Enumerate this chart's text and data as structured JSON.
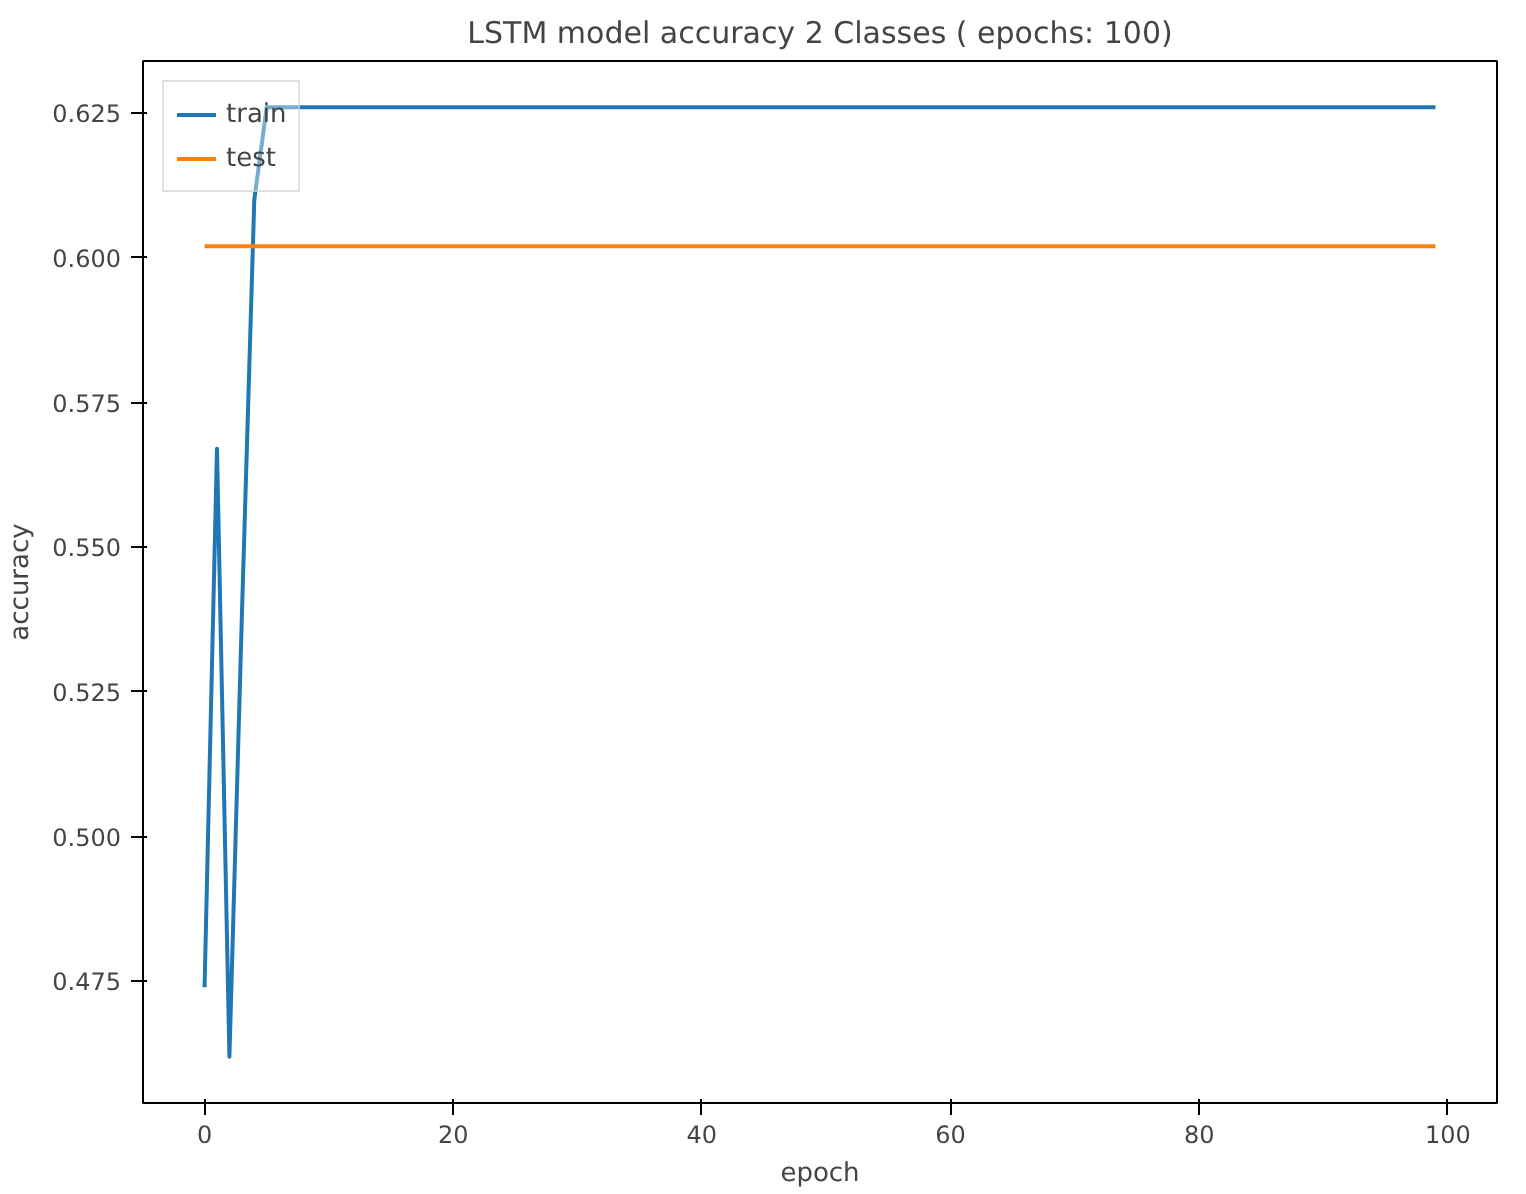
{
  "chart_data": {
    "type": "line",
    "title": "LSTM model accuracy 2 Classes ( epochs: 100)",
    "xlabel": "epoch",
    "ylabel": "accuracy",
    "x": [
      0,
      1,
      2,
      3,
      4,
      5,
      6,
      7,
      8,
      9,
      10,
      11,
      12,
      13,
      14,
      15,
      16,
      17,
      18,
      19,
      20,
      21,
      22,
      23,
      24,
      25,
      26,
      27,
      28,
      29,
      30,
      31,
      32,
      33,
      34,
      35,
      36,
      37,
      38,
      39,
      40,
      41,
      42,
      43,
      44,
      45,
      46,
      47,
      48,
      49,
      50,
      51,
      52,
      53,
      54,
      55,
      56,
      57,
      58,
      59,
      60,
      61,
      62,
      63,
      64,
      65,
      66,
      67,
      68,
      69,
      70,
      71,
      72,
      73,
      74,
      75,
      76,
      77,
      78,
      79,
      80,
      81,
      82,
      83,
      84,
      85,
      86,
      87,
      88,
      89,
      90,
      91,
      92,
      93,
      94,
      95,
      96,
      97,
      98,
      99
    ],
    "series": [
      {
        "name": "train",
        "color": "#1f77b4",
        "values": [
          0.474,
          0.567,
          0.462,
          0.538,
          0.61,
          0.626,
          0.626,
          0.626,
          0.626,
          0.626,
          0.626,
          0.626,
          0.626,
          0.626,
          0.626,
          0.626,
          0.626,
          0.626,
          0.626,
          0.626,
          0.626,
          0.626,
          0.626,
          0.626,
          0.626,
          0.626,
          0.626,
          0.626,
          0.626,
          0.626,
          0.626,
          0.626,
          0.626,
          0.626,
          0.626,
          0.626,
          0.626,
          0.626,
          0.626,
          0.626,
          0.626,
          0.626,
          0.626,
          0.626,
          0.626,
          0.626,
          0.626,
          0.626,
          0.626,
          0.626,
          0.626,
          0.626,
          0.626,
          0.626,
          0.626,
          0.626,
          0.626,
          0.626,
          0.626,
          0.626,
          0.626,
          0.626,
          0.626,
          0.626,
          0.626,
          0.626,
          0.626,
          0.626,
          0.626,
          0.626,
          0.626,
          0.626,
          0.626,
          0.626,
          0.626,
          0.626,
          0.626,
          0.626,
          0.626,
          0.626,
          0.626,
          0.626,
          0.626,
          0.626,
          0.626,
          0.626,
          0.626,
          0.626,
          0.626,
          0.626,
          0.626,
          0.626,
          0.626,
          0.626,
          0.626,
          0.626,
          0.626,
          0.626,
          0.626,
          0.626
        ]
      },
      {
        "name": "test",
        "color": "#ff7f0e",
        "values": [
          0.602,
          0.602,
          0.602,
          0.602,
          0.602,
          0.602,
          0.602,
          0.602,
          0.602,
          0.602,
          0.602,
          0.602,
          0.602,
          0.602,
          0.602,
          0.602,
          0.602,
          0.602,
          0.602,
          0.602,
          0.602,
          0.602,
          0.602,
          0.602,
          0.602,
          0.602,
          0.602,
          0.602,
          0.602,
          0.602,
          0.602,
          0.602,
          0.602,
          0.602,
          0.602,
          0.602,
          0.602,
          0.602,
          0.602,
          0.602,
          0.602,
          0.602,
          0.602,
          0.602,
          0.602,
          0.602,
          0.602,
          0.602,
          0.602,
          0.602,
          0.602,
          0.602,
          0.602,
          0.602,
          0.602,
          0.602,
          0.602,
          0.602,
          0.602,
          0.602,
          0.602,
          0.602,
          0.602,
          0.602,
          0.602,
          0.602,
          0.602,
          0.602,
          0.602,
          0.602,
          0.602,
          0.602,
          0.602,
          0.602,
          0.602,
          0.602,
          0.602,
          0.602,
          0.602,
          0.602,
          0.602,
          0.602,
          0.602,
          0.602,
          0.602,
          0.602,
          0.602,
          0.602,
          0.602,
          0.602,
          0.602,
          0.602,
          0.602,
          0.602,
          0.602,
          0.602,
          0.602,
          0.602,
          0.602,
          0.602
        ]
      }
    ],
    "xlim": [
      -4.95,
      103.95
    ],
    "ylim": [
      0.454,
      0.634
    ],
    "xticks": [
      0,
      20,
      40,
      60,
      80,
      100
    ],
    "yticks": [
      {
        "value": 0.475,
        "label": "0.475"
      },
      {
        "value": 0.5,
        "label": "0.500"
      },
      {
        "value": 0.525,
        "label": "0.525"
      },
      {
        "value": 0.55,
        "label": "0.550"
      },
      {
        "value": 0.575,
        "label": "0.575"
      },
      {
        "value": 0.6,
        "label": "0.600"
      },
      {
        "value": 0.625,
        "label": "0.625"
      }
    ],
    "grid": false,
    "legend": "top left"
  }
}
